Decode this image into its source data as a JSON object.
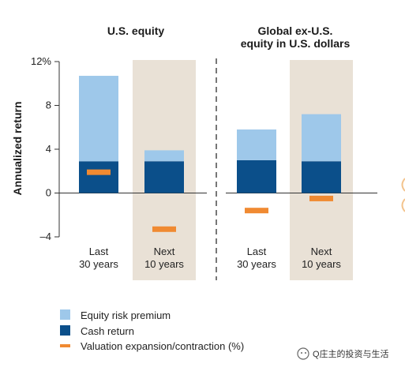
{
  "chart_data": {
    "type": "bar",
    "stacked": true,
    "panels": [
      {
        "title": "U.S. equity",
        "categories": [
          {
            "line1": "Last",
            "line2": "30 years",
            "shaded": false
          },
          {
            "line1": "Next",
            "line2": "10 years",
            "shaded": true
          }
        ]
      },
      {
        "title": "Global ex-U.S. equity in U.S. dollars",
        "title_lines": [
          "Global ex-U.S.",
          "equity in U.S. dollars"
        ],
        "categories": [
          {
            "line1": "Last",
            "line2": "30 years",
            "shaded": false
          },
          {
            "line1": "Next",
            "line2": "10 years",
            "shaded": true
          }
        ]
      }
    ],
    "series": [
      {
        "name": "Cash return",
        "values": [
          2.9,
          2.9,
          3.0,
          2.9
        ]
      },
      {
        "name": "Equity risk premium",
        "values": [
          7.8,
          1.0,
          2.8,
          4.3
        ]
      },
      {
        "name": "Valuation expansion/contraction (%)",
        "values": [
          1.9,
          -3.3,
          -1.6,
          -0.5
        ],
        "marker": "dash"
      }
    ],
    "ylabel": "Annualized return",
    "ylim": [
      -4,
      12
    ],
    "yticks": [
      {
        "value": 12,
        "label": "12%"
      },
      {
        "value": 8,
        "label": "8"
      },
      {
        "value": 4,
        "label": "4"
      },
      {
        "value": 0,
        "label": "0"
      },
      {
        "value": -4,
        "label": "–4"
      }
    ],
    "legend": {
      "position": "bottom-left",
      "items": [
        {
          "label": "Equity risk premium",
          "series": "Equity risk premium",
          "shape": "square"
        },
        {
          "label": "Cash return",
          "series": "Cash return",
          "shape": "square"
        },
        {
          "label": "Valuation expansion/contraction (%)",
          "series": "Valuation expansion/contraction (%)",
          "shape": "dash"
        }
      ]
    },
    "colors": {
      "cash": "#0b4f8a",
      "premium": "#9ec8ea",
      "valuation": "#f08a32",
      "shade": "#e9e1d6",
      "axis": "#333333",
      "divider": "#555555"
    }
  },
  "watermark": {
    "text": "Q庄主的投资与生活"
  }
}
